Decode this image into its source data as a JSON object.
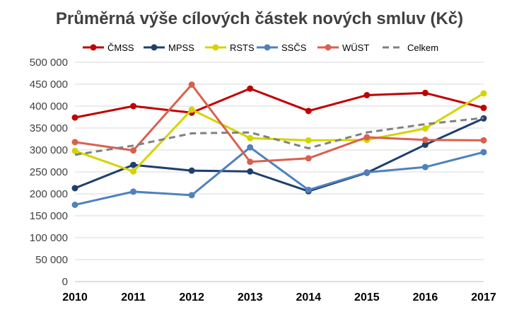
{
  "chart_data": {
    "type": "line",
    "title": "Průměrná výše cílových částek nových smluv (Kč)",
    "xlabel": "",
    "ylabel": "",
    "categories": [
      "2010",
      "2011",
      "2012",
      "2013",
      "2014",
      "2015",
      "2016",
      "2017"
    ],
    "ylim": [
      0,
      500000
    ],
    "yticks": [
      0,
      50000,
      100000,
      150000,
      200000,
      250000,
      300000,
      350000,
      400000,
      450000,
      500000
    ],
    "ytick_labels": [
      "0",
      "50 000",
      "100 000",
      "150 000",
      "200 000",
      "250 000",
      "300 000",
      "350 000",
      "400 000",
      "450 000",
      "500 000"
    ],
    "grid": true,
    "legend_position": "top",
    "series": [
      {
        "name": "ČMSS",
        "color": "#c00000",
        "marker": true,
        "dashed": false,
        "values": [
          374000,
          400000,
          385000,
          440000,
          389000,
          425000,
          430000,
          396000
        ]
      },
      {
        "name": "MPSS",
        "color": "#1f3f6e",
        "marker": true,
        "dashed": false,
        "values": [
          213000,
          266000,
          253000,
          251000,
          206000,
          248000,
          312000,
          372000
        ]
      },
      {
        "name": "RSTS",
        "color": "#d4d400",
        "marker": true,
        "dashed": false,
        "values": [
          298000,
          251000,
          392000,
          327000,
          322000,
          323000,
          349000,
          429000
        ]
      },
      {
        "name": "SSČS",
        "color": "#4f81bd",
        "marker": true,
        "dashed": false,
        "values": [
          175000,
          205000,
          197000,
          306000,
          209000,
          249000,
          261000,
          295000
        ]
      },
      {
        "name": "WÜST",
        "color": "#d9604f",
        "marker": true,
        "dashed": false,
        "values": [
          318000,
          299000,
          449000,
          273000,
          281000,
          329000,
          323000,
          322000
        ]
      },
      {
        "name": "Celkem",
        "color": "#808080",
        "marker": false,
        "dashed": true,
        "values": [
          289000,
          310000,
          338000,
          340000,
          304000,
          340000,
          359000,
          373000
        ]
      }
    ]
  }
}
